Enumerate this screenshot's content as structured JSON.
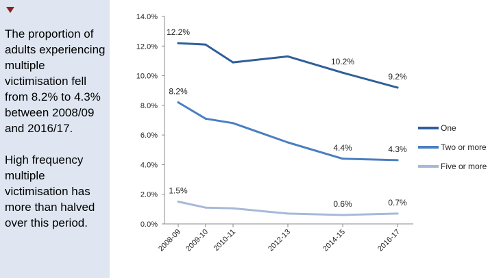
{
  "sidebar": {
    "marker_color": "#8a2424",
    "paragraphs": [
      "The proportion of adults experiencing multiple victimisation fell from 8.2% to 4.3% between 2008/09 and 2016/17.",
      "High frequency multiple victimisation has more than halved over this period."
    ]
  },
  "chart_data": {
    "type": "line",
    "title": "",
    "xlabel": "",
    "ylabel": "",
    "ylim": [
      0,
      14
    ],
    "yticks": [
      "0.0%",
      "2.0%",
      "4.0%",
      "6.0%",
      "8.0%",
      "10.0%",
      "12.0%",
      "14.0%"
    ],
    "x": [
      2008.5,
      2009.5,
      2010.5,
      2012.5,
      2014.5,
      2016.5
    ],
    "categories": [
      "2008-09",
      "2009-10",
      "2010-11",
      "2012-13",
      "2014-15",
      "2016-17"
    ],
    "series": [
      {
        "name": "One",
        "color": "#2e5f9b",
        "values": [
          12.2,
          12.1,
          10.9,
          11.3,
          10.2,
          9.2
        ],
        "labels": [
          "12.2%",
          null,
          null,
          null,
          "10.2%",
          "9.2%"
        ]
      },
      {
        "name": "Two or more",
        "color": "#4a7fc1",
        "values": [
          8.2,
          7.1,
          6.8,
          5.5,
          4.4,
          4.3
        ],
        "labels": [
          "8.2%",
          null,
          null,
          null,
          "4.4%",
          "4.3%"
        ]
      },
      {
        "name": "Five or more",
        "color": "#a6b9d9",
        "values": [
          1.5,
          1.1,
          1.05,
          0.7,
          0.6,
          0.7
        ],
        "labels": [
          "1.5%",
          null,
          null,
          null,
          "0.6%",
          "0.7%"
        ]
      }
    ],
    "grid": false,
    "legend": "right"
  }
}
